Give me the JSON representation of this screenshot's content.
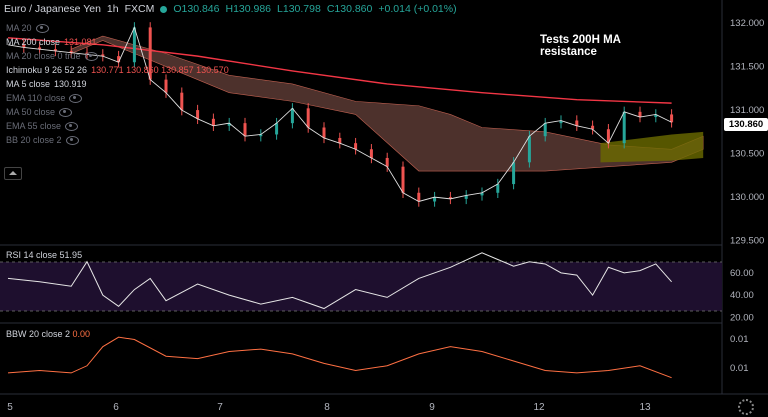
{
  "header": {
    "symbol": "Euro / Japanese Yen",
    "interval": "1h",
    "exchange": "FXCM",
    "o": "O130.846",
    "h": "H130.986",
    "l": "L130.798",
    "c": "C130.860",
    "change": "+0.014 (+0.01%)"
  },
  "indicators": [
    {
      "name": "MA 20",
      "value": "",
      "muted": true
    },
    {
      "name": "MA 200 close",
      "value": "131.081",
      "muted": false,
      "color": "#ef5350"
    },
    {
      "name": "MA 20 close 0 true",
      "value": "",
      "muted": true
    },
    {
      "name": "Ichimoku 9 26 52 26",
      "value": "130.771 130.860 130.857 130.570",
      "muted": false,
      "color": "#ef5350"
    },
    {
      "name": "MA 5 close",
      "value": "130.919",
      "muted": false,
      "color": "#d1d4dc"
    },
    {
      "name": "EMA 110 close",
      "value": "",
      "muted": true
    },
    {
      "name": "MA 50 close",
      "value": "",
      "muted": true
    },
    {
      "name": "EMA 55 close",
      "value": "",
      "muted": true
    },
    {
      "name": "BB 20 close 2",
      "value": "",
      "muted": true
    }
  ],
  "annotation": "Tests 200H MA resistance",
  "last_price": "130.860",
  "rsi": {
    "label": "RSI 14 close",
    "value": "51.95"
  },
  "bbw": {
    "label": "BBW 20 close 2",
    "value": "0.00"
  },
  "colors": {
    "up": "#26a69a",
    "down": "#ef5350",
    "ma200": "#f23645",
    "cloud_bear": "#8d5a50",
    "cloud_bull": "#6b6b00"
  },
  "chart_data": [
    {
      "type": "line",
      "title": "Euro / Japanese Yen, 1h, FXCM",
      "x_ticks": [
        "5",
        "6",
        "7",
        "8",
        "9",
        "12",
        "13"
      ],
      "y_ticks": [
        "132.000",
        "131.500",
        "131.000",
        "130.500",
        "130.000",
        "129.500"
      ],
      "ylim": [
        129.45,
        132.15
      ],
      "series": [
        {
          "name": "Price (close)",
          "x": [
            0,
            4,
            8,
            12,
            16,
            20,
            24,
            28,
            32,
            36,
            40,
            44,
            48,
            52,
            56,
            60,
            64,
            68,
            72,
            76,
            80,
            84,
            88,
            92,
            96,
            100,
            104,
            108,
            112,
            116,
            120,
            124,
            128,
            132,
            136,
            140,
            144,
            148,
            152,
            156,
            160,
            164,
            168
          ],
          "values": [
            131.75,
            131.72,
            131.7,
            131.68,
            131.66,
            131.64,
            131.62,
            131.55,
            131.95,
            131.35,
            131.2,
            131.0,
            130.9,
            130.82,
            130.85,
            130.7,
            130.72,
            130.85,
            131.02,
            130.8,
            130.68,
            130.62,
            130.55,
            130.45,
            130.35,
            130.05,
            129.95,
            130.0,
            129.98,
            130.02,
            130.05,
            130.15,
            130.4,
            130.7,
            130.85,
            130.88,
            130.82,
            130.78,
            130.62,
            130.98,
            130.92,
            130.95,
            130.86
          ]
        },
        {
          "name": "MA 200",
          "x": [
            0,
            24,
            48,
            72,
            96,
            120,
            144,
            168
          ],
          "values": [
            131.83,
            131.75,
            131.62,
            131.45,
            131.3,
            131.2,
            131.12,
            131.08
          ]
        },
        {
          "name": "Ichimoku cloud upper",
          "x": [
            16,
            24,
            40,
            56,
            72,
            88,
            104,
            112,
            120,
            136,
            152,
            168,
            176
          ],
          "values": [
            131.7,
            131.85,
            131.65,
            131.4,
            131.3,
            131.1,
            131.05,
            130.95,
            130.8,
            130.75,
            130.6,
            130.55,
            130.7
          ]
        },
        {
          "name": "Ichimoku cloud lower",
          "x": [
            16,
            24,
            40,
            56,
            72,
            88,
            104,
            112,
            120,
            136,
            152,
            168,
            176
          ],
          "values": [
            131.65,
            131.8,
            131.5,
            131.2,
            131.1,
            130.95,
            130.3,
            130.3,
            130.3,
            130.3,
            130.35,
            130.4,
            130.55
          ]
        }
      ]
    },
    {
      "type": "line",
      "title": "RSI 14 close",
      "y_ticks": [
        "60.00",
        "40.00",
        "20.00"
      ],
      "ylim": [
        15,
        85
      ],
      "series": [
        {
          "name": "RSI",
          "x": [
            0,
            8,
            16,
            20,
            24,
            28,
            32,
            36,
            40,
            48,
            56,
            64,
            72,
            80,
            88,
            96,
            104,
            112,
            120,
            124,
            128,
            132,
            136,
            140,
            144,
            148,
            152,
            156,
            160,
            164,
            168
          ],
          "values": [
            55,
            52,
            48,
            70,
            40,
            30,
            45,
            55,
            35,
            50,
            40,
            32,
            38,
            28,
            45,
            38,
            55,
            65,
            78,
            72,
            66,
            70,
            68,
            60,
            58,
            40,
            65,
            60,
            62,
            68,
            52
          ]
        }
      ]
    },
    {
      "type": "line",
      "title": "BBW 20 close 2",
      "y_ticks": [
        "0.01",
        "0.01"
      ],
      "series": [
        {
          "name": "BBW",
          "x": [
            0,
            8,
            16,
            20,
            24,
            28,
            32,
            40,
            48,
            56,
            64,
            72,
            80,
            88,
            96,
            104,
            112,
            120,
            128,
            136,
            144,
            152,
            160,
            168
          ],
          "values": [
            0.004,
            0.0045,
            0.004,
            0.0055,
            0.0095,
            0.0115,
            0.011,
            0.0075,
            0.007,
            0.0085,
            0.009,
            0.008,
            0.006,
            0.0045,
            0.0055,
            0.008,
            0.0095,
            0.0085,
            0.0065,
            0.0045,
            0.004,
            0.0045,
            0.0055,
            0.003
          ]
        }
      ]
    }
  ]
}
